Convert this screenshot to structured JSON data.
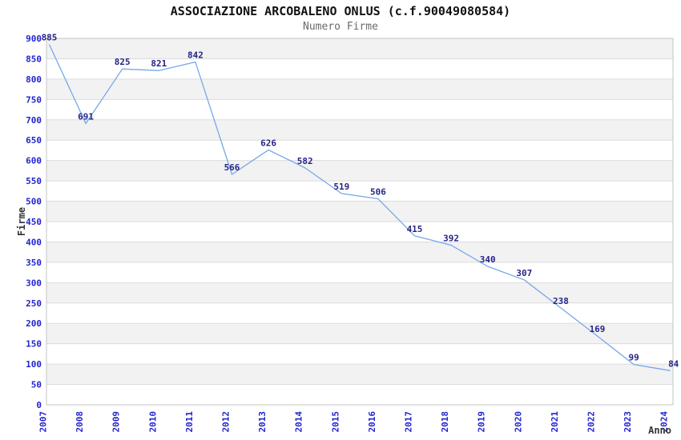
{
  "header": {
    "title": "ASSOCIAZIONE ARCOBALENO ONLUS (c.f.90049080584)",
    "subtitle": "Numero Firme"
  },
  "chart_data": {
    "type": "line",
    "title": "ASSOCIAZIONE ARCOBALENO ONLUS (c.f.90049080584)",
    "subtitle": "Numero Firme",
    "xlabel": "Anno",
    "ylabel": "Firme",
    "categories": [
      "2007",
      "2008",
      "2009",
      "2010",
      "2011",
      "2012",
      "2013",
      "2014",
      "2015",
      "2016",
      "2017",
      "2018",
      "2019",
      "2020",
      "2021",
      "2022",
      "2023",
      "2024"
    ],
    "series": [
      {
        "name": "Numero Firme",
        "values": [
          885,
          691,
          825,
          821,
          842,
          566,
          626,
          582,
          519,
          506,
          415,
          392,
          340,
          307,
          238,
          169,
          99,
          84
        ]
      }
    ],
    "ylim": [
      0,
      900
    ],
    "ytick_step": 50,
    "grid": true,
    "alternating_bands": true,
    "data_labels": true,
    "legend_position": "none",
    "colors": {
      "line": "#76a8e8",
      "tick_label": "#2424d0",
      "data_label": "#242488",
      "band": "#f2f2f2",
      "gridline": "#dcdcdc",
      "border": "#c4c4c4",
      "title": "#111111",
      "subtitle": "#6b6b6b",
      "axis_title": "#333333"
    }
  }
}
